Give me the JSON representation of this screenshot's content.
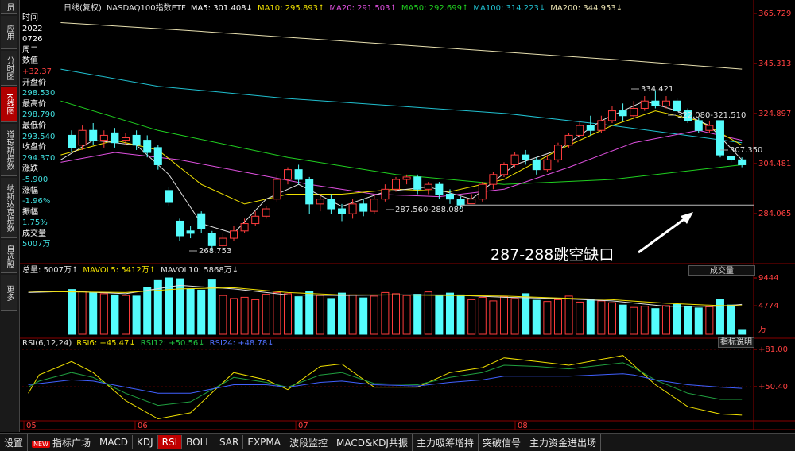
{
  "sidebar": [
    "员",
    "应用",
    "分时图",
    "K线图",
    "道琼斯指数",
    "纳斯达克指数",
    "自选股",
    "更多"
  ],
  "info_panel": [
    {
      "text": "时间",
      "color": "#ffffff"
    },
    {
      "text": "2022",
      "color": "#ffffff"
    },
    {
      "text": "0726",
      "color": "#ffffff"
    },
    {
      "text": "周二",
      "color": "#ffffff"
    },
    {
      "text": "数值",
      "color": "#ffffff"
    },
    {
      "text": "+32.37",
      "color": "#ff4040"
    },
    {
      "text": "开盘价",
      "color": "#ffffff"
    },
    {
      "text": "298.530",
      "color": "#40e0e0"
    },
    {
      "text": "最高价",
      "color": "#ffffff"
    },
    {
      "text": "298.790",
      "color": "#40e0e0"
    },
    {
      "text": "最低价",
      "color": "#ffffff"
    },
    {
      "text": "293.540",
      "color": "#40e0e0"
    },
    {
      "text": "收盘价",
      "color": "#ffffff"
    },
    {
      "text": "294.370",
      "color": "#40e0e0"
    },
    {
      "text": "涨跌",
      "color": "#ffffff"
    },
    {
      "text": "-5.900",
      "color": "#40e0e0"
    },
    {
      "text": "涨幅",
      "color": "#ffffff"
    },
    {
      "text": "-1.96%",
      "color": "#40e0e0"
    },
    {
      "text": "振幅",
      "color": "#ffffff"
    },
    {
      "text": "1.75%",
      "color": "#40e0e0"
    },
    {
      "text": "成交量",
      "color": "#ffffff"
    },
    {
      "text": "5007万",
      "color": "#40e0e0"
    }
  ],
  "chart_data": [
    {
      "type": "candlestick",
      "legend": [
        {
          "text": "日线(复权)",
          "color": "#e0e0e0"
        },
        {
          "text": "NASDAQ100指数ETF",
          "color": "#e0e0e0"
        },
        {
          "text": "MA5: 301.408↓",
          "color": "#ffffff"
        },
        {
          "text": "MA10: 295.893↑",
          "color": "#f0e000"
        },
        {
          "text": "MA20: 291.503↑",
          "color": "#e050e0"
        },
        {
          "text": "MA50: 292.699↑",
          "color": "#20d020"
        },
        {
          "text": "MA100: 314.223↓",
          "color": "#20c0d0"
        },
        {
          "text": "MA200: 344.953↓",
          "color": "#e8e0b0"
        }
      ],
      "open": [
        316,
        312,
        318,
        314,
        317,
        314,
        316,
        314,
        311,
        293.5,
        281,
        277,
        284,
        276,
        271,
        274,
        277,
        280,
        283,
        290,
        298,
        302,
        298,
        288,
        290,
        286,
        284,
        288,
        285,
        290,
        294,
        298,
        299,
        294,
        296,
        292,
        290,
        288.08,
        290,
        296,
        300,
        304,
        308,
        306,
        302,
        306,
        312,
        316,
        320,
        318,
        322,
        326,
        324,
        327,
        330,
        328,
        330,
        326,
        322,
        318,
        322,
        307.35,
        306
      ],
      "high": [
        318,
        320,
        321,
        318,
        319,
        317,
        318,
        316,
        312,
        295,
        282,
        279,
        285,
        277,
        276,
        279,
        282,
        285,
        287,
        300,
        303,
        304,
        299,
        292,
        292,
        288,
        290,
        290,
        292,
        296,
        299,
        300,
        300,
        297,
        297,
        294,
        291,
        292,
        297,
        301,
        305,
        309,
        310,
        307,
        308,
        313,
        317,
        322,
        324,
        324,
        328,
        329,
        330,
        332,
        334.421,
        332,
        331,
        327,
        323,
        322,
        322,
        307.35,
        307
      ],
      "low": [
        309,
        310,
        312,
        311,
        311,
        312,
        310,
        307,
        302,
        287,
        273,
        274,
        276,
        268.753,
        270,
        273,
        276,
        279,
        282,
        289,
        296,
        296,
        284,
        285,
        284,
        281,
        282,
        283,
        284,
        289,
        293,
        296,
        292,
        292,
        290,
        288,
        286,
        288.08,
        289,
        294,
        299,
        303,
        304,
        300,
        301,
        305,
        311,
        315,
        316,
        317,
        321,
        322,
        323,
        326,
        327,
        327,
        325,
        321,
        317,
        317,
        307,
        305,
        303
      ],
      "close": [
        311,
        318,
        314,
        316,
        313,
        315,
        312,
        309,
        304,
        288.6,
        275,
        276,
        278,
        271,
        274,
        277,
        280,
        283,
        286,
        298,
        302,
        298,
        288,
        290,
        286,
        284,
        288,
        285,
        290,
        294,
        298,
        299,
        294,
        296,
        292,
        290,
        287.56,
        290,
        296,
        300,
        304,
        308,
        306,
        302,
        306,
        312,
        316,
        320,
        318,
        322,
        326,
        324,
        327,
        330,
        328,
        330,
        326,
        322,
        318,
        320,
        308,
        306,
        304
      ],
      "up_color": "#ff3c3c",
      "down_color": "#54fcfc",
      "xlim": [
        -4.56,
        62.87
      ],
      "ylim": [
        264.3,
        369.6
      ],
      "yticks": [
        365.729,
        345.313,
        324.897,
        304.481,
        284.065
      ],
      "series": [
        {
          "color": "#e8e0b0",
          "x": [
            -1,
            10,
            20,
            30,
            40,
            50,
            62
          ],
          "values": [
            362,
            359,
            356,
            353,
            350,
            347,
            343
          ]
        },
        {
          "color": "#20c0d0",
          "x": [
            -1,
            8,
            20,
            30,
            40,
            50,
            62
          ],
          "values": [
            343,
            336,
            331,
            328,
            325,
            320,
            313
          ]
        },
        {
          "color": "#20d020",
          "x": [
            -1,
            8,
            20,
            30,
            40,
            50,
            62
          ],
          "values": [
            330,
            318,
            307,
            300,
            296,
            298,
            304
          ]
        },
        {
          "color": "#e050e0",
          "x": [
            -1,
            4,
            10,
            16,
            22,
            28,
            34,
            40,
            46,
            52,
            58,
            62
          ],
          "values": [
            305,
            309,
            306,
            301,
            296,
            292,
            291,
            294,
            303,
            313,
            318,
            314
          ]
        },
        {
          "color": "#f0e000",
          "x": [
            -1,
            4,
            8,
            12,
            16,
            20,
            25,
            30,
            35,
            40,
            45,
            50,
            54,
            58,
            62
          ],
          "values": [
            308,
            314,
            310,
            296,
            288,
            292,
            292,
            294,
            293,
            298,
            310,
            320,
            326,
            322,
            312
          ]
        },
        {
          "color": "#e0e0e0",
          "x": [
            -1,
            2,
            6,
            9,
            12,
            15,
            18,
            21,
            25,
            29,
            33,
            37,
            41,
            45,
            49,
            53,
            56,
            59,
            62
          ],
          "values": [
            306,
            314,
            312,
            300,
            280,
            276,
            290,
            296,
            287,
            293,
            295,
            290,
            304,
            310,
            322,
            330,
            326,
            320,
            306
          ]
        }
      ],
      "annotations": [
        "334.421",
        "322.080-321.510",
        "307.350",
        "287.560-288.080",
        "268.753"
      ]
    },
    {
      "type": "bar",
      "legend": [
        {
          "text": "总量: 5007万↑",
          "color": "#e0e0e0"
        },
        {
          "text": "MAVOL5: 5412万↑",
          "color": "#f0e000"
        },
        {
          "text": "MAVOL10: 5868万↓",
          "color": "#e0e0e0"
        }
      ],
      "values": [
        7500,
        7200,
        7000,
        6800,
        6600,
        6500,
        6400,
        7800,
        9000,
        9444,
        9300,
        7600,
        7400,
        9100,
        6500,
        6000,
        6200,
        5800,
        6700,
        7000,
        6800,
        6300,
        7200,
        6500,
        6000,
        6900,
        6600,
        6100,
        6400,
        7000,
        6800,
        6500,
        6700,
        7100,
        6400,
        6900,
        6600,
        5800,
        6200,
        5600,
        6300,
        6000,
        6800,
        5700,
        5500,
        5800,
        6400,
        5400,
        5900,
        5600,
        5300,
        4900,
        4500,
        4700,
        4300,
        4800,
        5000,
        4600,
        4400,
        4600,
        5800,
        4900,
        800
      ],
      "ylim": [
        0,
        10112
      ],
      "yticks": [
        9444,
        4774
      ],
      "unit": "万",
      "series": [
        {
          "color": "#e0e0e0",
          "x": [
            -4,
            0,
            5,
            10,
            15,
            20,
            25,
            30,
            35,
            40,
            45,
            50,
            55,
            60,
            62
          ],
          "values": [
            7000,
            7200,
            6800,
            8200,
            7600,
            6600,
            6500,
            6600,
            6600,
            6200,
            6000,
            5600,
            4700,
            4700,
            5000
          ]
        },
        {
          "color": "#f0e000",
          "x": [
            -4,
            0,
            5,
            10,
            15,
            20,
            25,
            30,
            35,
            40,
            45,
            50,
            55,
            60,
            62
          ],
          "values": [
            7200,
            7100,
            7000,
            7600,
            7800,
            7000,
            6600,
            6600,
            6500,
            6400,
            6100,
            5800,
            5200,
            4800,
            4800
          ]
        }
      ],
      "dropdown": "成交量"
    },
    {
      "type": "line",
      "legend": [
        {
          "text": "RSI(6,12,24)",
          "color": "#e0e0e0"
        },
        {
          "text": "RSI6: +45.47↓",
          "color": "#f0e000"
        },
        {
          "text": "RSI12: +50.56↓",
          "color": "#20c040"
        },
        {
          "text": "RSI24: +48.78↓",
          "color": "#5070ff"
        }
      ],
      "ylim": [
        22.4,
        87.5
      ],
      "yticks": [
        {
          "value": 81,
          "label": "+81.00"
        },
        {
          "value": 50.4,
          "label": "+50.40"
        }
      ],
      "xticks": [
        {
          "value": -4.41,
          "label": "05"
        },
        {
          "value": 5.88,
          "label": "06"
        },
        {
          "value": 20.74,
          "label": "07"
        },
        {
          "value": 41.03,
          "label": "08"
        }
      ],
      "series": [
        {
          "color": "#f0e000",
          "x": [
            -4,
            -3,
            0,
            2,
            5,
            8,
            11,
            15,
            18,
            20,
            23,
            25,
            28,
            32,
            35,
            38,
            40,
            43,
            46,
            51,
            52,
            54,
            57,
            60,
            62
          ],
          "values": [
            45,
            60,
            71,
            62,
            39,
            24,
            29,
            62,
            56,
            48,
            67,
            69,
            50,
            50,
            62,
            66,
            74,
            71,
            68,
            76,
            68,
            52,
            34,
            28,
            27
          ]
        },
        {
          "color": "#20a040",
          "x": [
            -4,
            -3,
            0,
            2,
            5,
            8,
            11,
            15,
            18,
            20,
            23,
            25,
            28,
            32,
            35,
            38,
            40,
            43,
            46,
            51,
            52,
            54,
            57,
            60,
            62
          ],
          "values": [
            50,
            55,
            62,
            58,
            45,
            35,
            38,
            58,
            54,
            50,
            60,
            62,
            53,
            52,
            58,
            62,
            68,
            67,
            65,
            70,
            66,
            56,
            45,
            40,
            40
          ]
        },
        {
          "color": "#4060ff",
          "x": [
            -4,
            -3,
            0,
            2,
            5,
            8,
            11,
            15,
            18,
            20,
            23,
            25,
            28,
            32,
            35,
            38,
            40,
            43,
            46,
            51,
            52,
            54,
            57,
            60,
            62
          ],
          "values": [
            52,
            53,
            56,
            55,
            50,
            45,
            45,
            52,
            52,
            50,
            54,
            55,
            52,
            51,
            54,
            56,
            59,
            59,
            59,
            61,
            60,
            56,
            52,
            50,
            49
          ]
        }
      ],
      "button": "指标说明"
    }
  ],
  "annotation": "287-288跳空缺口",
  "tabs": [
    {
      "text": "设置"
    },
    {
      "badge": "NEW",
      "text": "指标广场"
    },
    {
      "text": "MACD"
    },
    {
      "text": "KDJ"
    },
    {
      "text": "RSI",
      "active": true
    },
    {
      "text": "BOLL"
    },
    {
      "text": "SAR"
    },
    {
      "text": "EXPMA"
    },
    {
      "text": "波段监控"
    },
    {
      "text": "MACD&KDJ共振"
    },
    {
      "text": "主力吸筹增持"
    },
    {
      "text": "突破信号"
    },
    {
      "text": "主力资金进出场"
    }
  ]
}
